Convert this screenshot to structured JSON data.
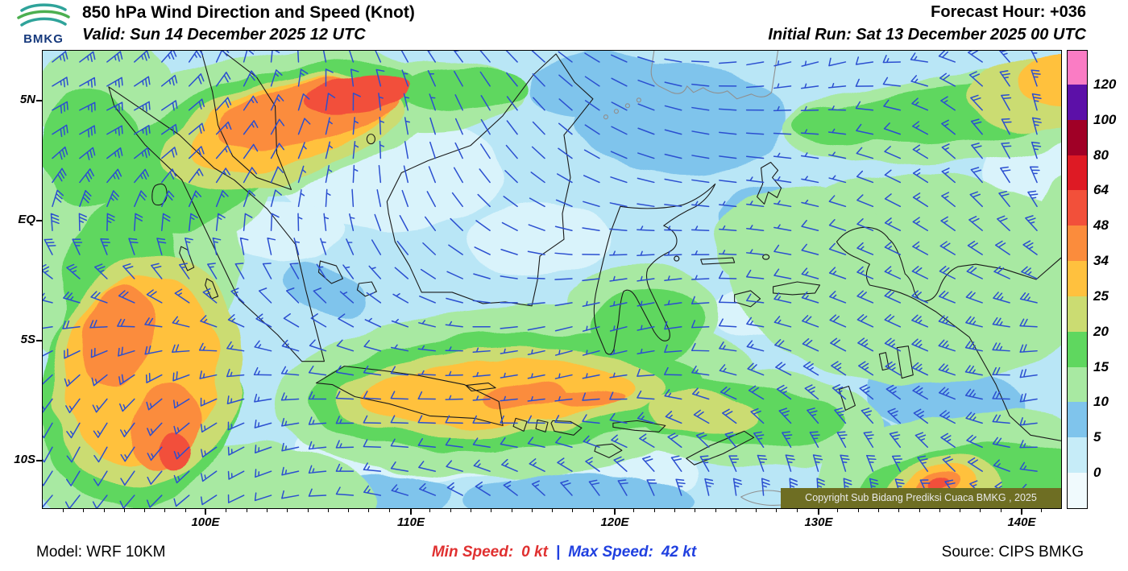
{
  "header": {
    "logo_text": "BMKG",
    "title": "850 hPa Wind Direction and Speed (Knot)",
    "valid": "Valid: Sun 14 December 2025 12 UTC",
    "forecast_hour": "Forecast Hour: +036",
    "initial_run": "Initial Run: Sat 13 December 2025 00 UTC"
  },
  "map": {
    "lat_labels": [
      "5N",
      "EQ",
      "5S",
      "10S"
    ],
    "lon_labels": [
      "100E",
      "110E",
      "120E",
      "130E",
      "140E"
    ],
    "copyright": "Copyright Sub Bidang Prediksi Cuaca BMKG , 2025",
    "copyright_bg": "#6E6E23",
    "base_color": "#B9E6F6",
    "pale_color": "#D9F3FB",
    "mid_blue": "#7FC4EC",
    "coast_color": "#1A1A1A",
    "foreign_coast_color": "#909090",
    "barb_color": "#2B4FD0"
  },
  "colorbar": {
    "labels_top_to_bottom": [
      "120",
      "100",
      "80",
      "64",
      "48",
      "34",
      "25",
      "20",
      "15",
      "10",
      "5",
      "0"
    ],
    "colors_bottom_to_top": [
      "#F0FAFD",
      "#C6ECF8",
      "#7FC4EC",
      "#A8E9A2",
      "#5FD75F",
      "#CBDC72",
      "#FFC13E",
      "#FB8C3C",
      "#F2503A",
      "#DE1A24",
      "#A00026",
      "#5C10A8",
      "#FA7CC4"
    ]
  },
  "footer": {
    "model": "Model: WRF 10KM",
    "min_label": "Min Speed:",
    "min_value": "0 kt",
    "separator": "|",
    "max_label": "Max Speed:",
    "max_value": "42 kt",
    "min_color": "#E03030",
    "max_color": "#2040E0",
    "source": "Source: CIPS BMKG"
  },
  "chart_data": {
    "type": "heatmap",
    "title": "850 hPa Wind Direction and Speed (Knot)",
    "valid_time": "Sun 14 December 2025 12 UTC",
    "initial_run": "Sat 13 December 2025 00 UTC",
    "forecast_hour": "+036",
    "units": "knot",
    "colorbar_levels": [
      0,
      5,
      10,
      15,
      20,
      25,
      34,
      48,
      64,
      80,
      100,
      120
    ],
    "x_ticks": [
      "100E",
      "110E",
      "120E",
      "130E",
      "140E"
    ],
    "y_ticks": [
      "5N",
      "EQ",
      "5S",
      "10S"
    ],
    "min_speed_kt": 0,
    "max_speed_kt": 42,
    "model": "WRF 10KM",
    "source": "CIPS BMKG",
    "legend_position": "right"
  }
}
